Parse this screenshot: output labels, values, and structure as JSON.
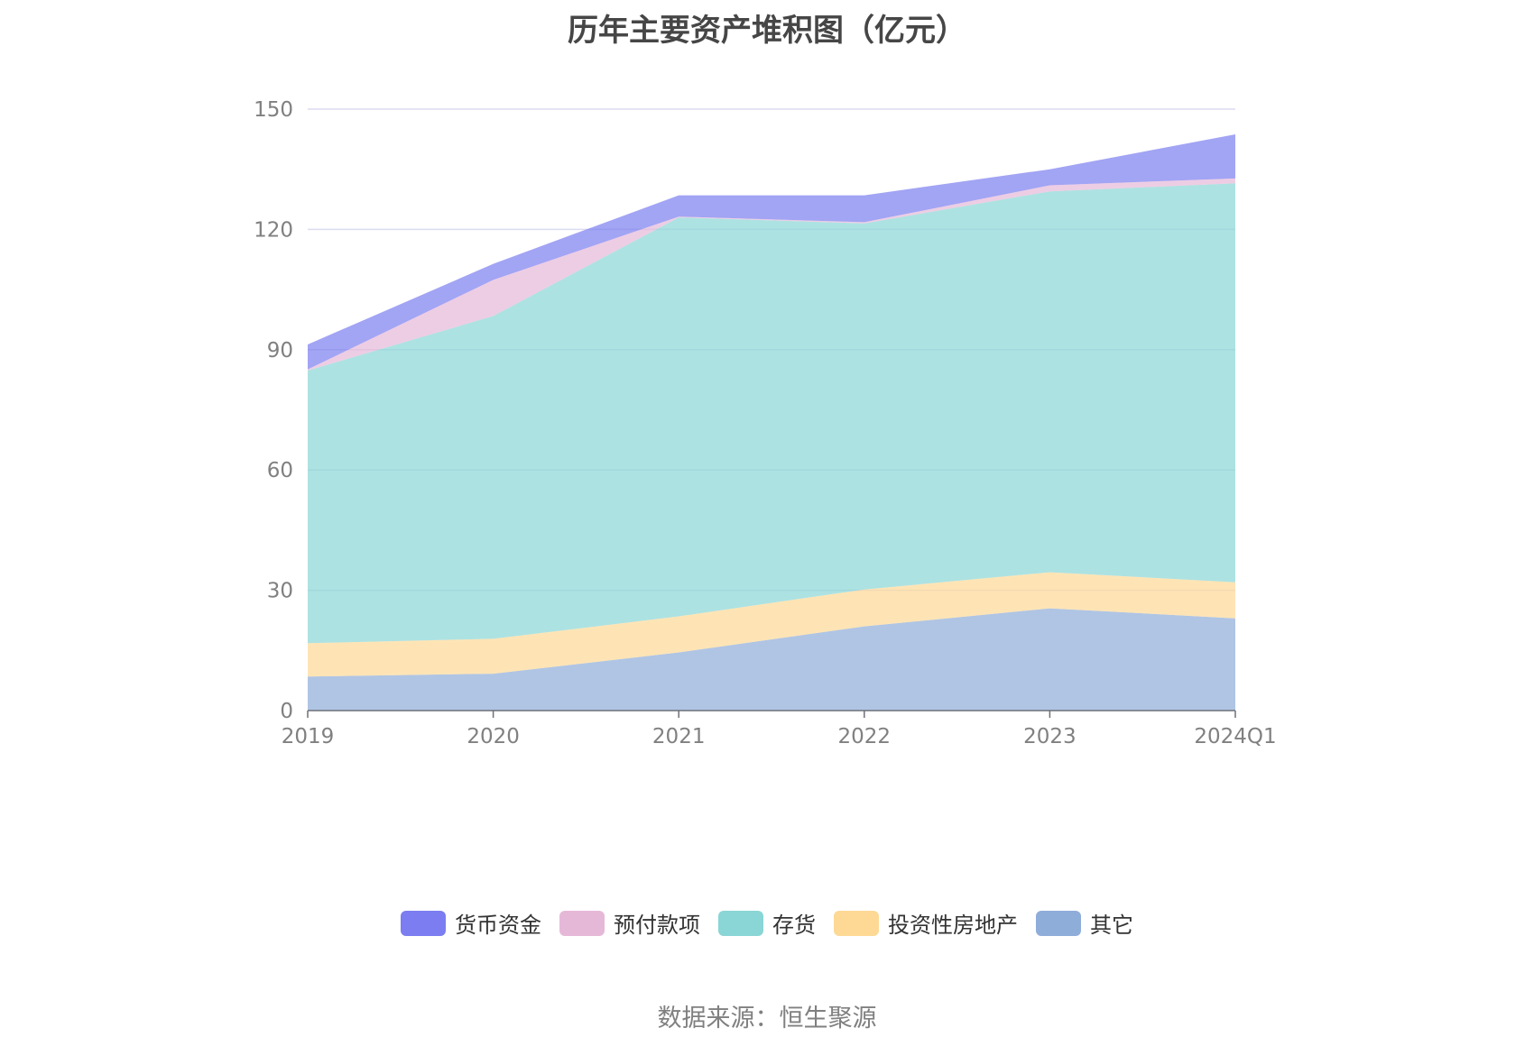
{
  "chart_data": {
    "type": "area",
    "stacked": true,
    "title": "历年主要资产堆积图（亿元）",
    "categories": [
      "2019",
      "2020",
      "2021",
      "2022",
      "2023",
      "2024Q1"
    ],
    "y_ticks": [
      "0",
      "30",
      "60",
      "90",
      "120",
      "150"
    ],
    "ylim": [
      0,
      150
    ],
    "grid": true,
    "legend_position": "bottom",
    "series": [
      {
        "name": "其它",
        "color": "#8fadd9",
        "values": [
          8.5,
          9.2,
          14.5,
          21.0,
          25.5,
          23.0
        ]
      },
      {
        "name": "投资性房地产",
        "color": "#fdd995",
        "values": [
          8.3,
          8.7,
          9.0,
          9.2,
          9.0,
          9.0
        ]
      },
      {
        "name": "存货",
        "color": "#8ad5d5",
        "values": [
          68.0,
          80.5,
          99.5,
          91.3,
          95.0,
          99.5
        ]
      },
      {
        "name": "预付款项",
        "color": "#e6b8d8",
        "values": [
          0.3,
          9.0,
          0.2,
          0.3,
          1.5,
          1.2
        ]
      },
      {
        "name": "货币资金",
        "color": "#7b7df0",
        "values": [
          6.2,
          4.0,
          5.3,
          6.7,
          4.0,
          11.0
        ]
      }
    ],
    "source": "数据来源：恒生聚源"
  }
}
